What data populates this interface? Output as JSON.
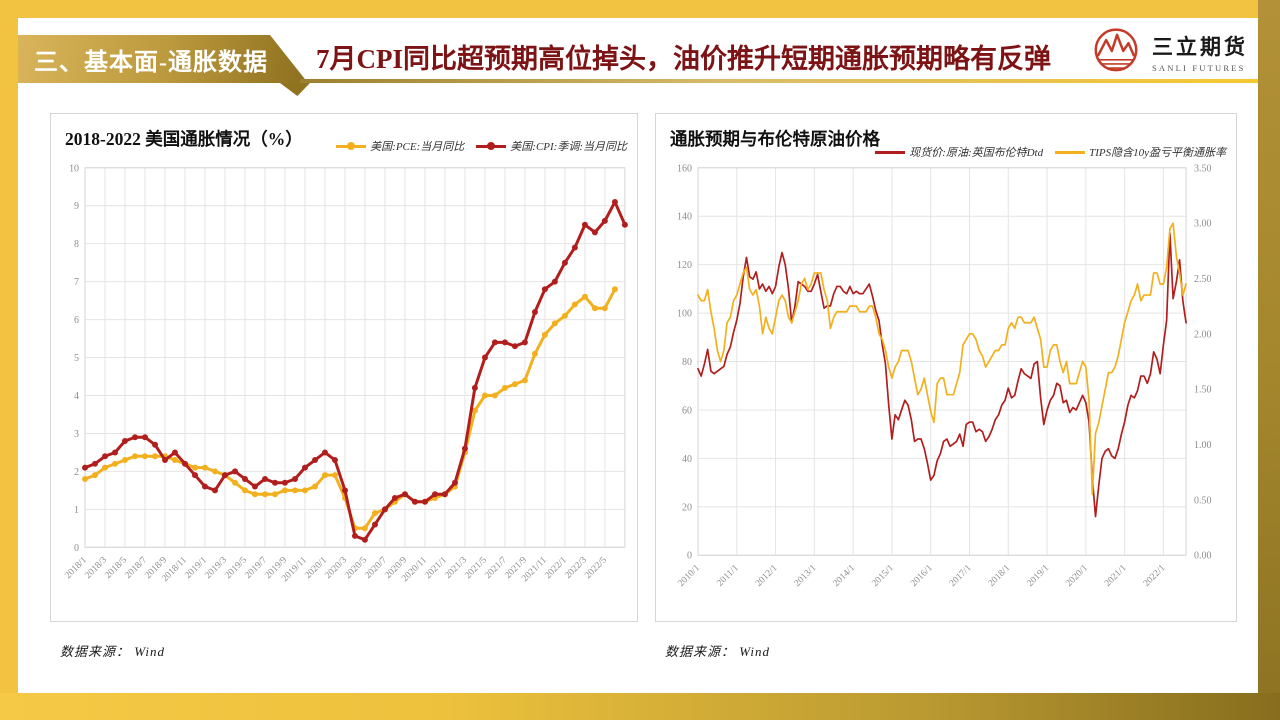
{
  "page": {
    "section_label": "三、基本面-通胀数据",
    "title": "7月CPI同比超预期高位掉头，油价推升短期通胀预期略有反弹",
    "logo_cn": "三立期货",
    "logo_en": "SANLI FUTURES"
  },
  "colors": {
    "gold_bright": "#F2C340",
    "gold_dark": "#8C7222",
    "title_red": "#7D1315",
    "line_red": "#B11E1E",
    "line_yellow": "#F2B01E",
    "grid": "#E4E4E4",
    "axis_text": "#8C8C8C",
    "panel_border": "#D6D6D6"
  },
  "chart_data": [
    {
      "type": "line",
      "title": "2018-2022 美国通胀情况（%）",
      "source": "数据来源： Wind",
      "legend_position": "top-right",
      "grid": true,
      "x_count": 55,
      "x_tick_step": 2,
      "x_tick_labels": [
        "2018/1",
        "2018/3",
        "2018/5",
        "2018/7",
        "2018/9",
        "2018/11",
        "2019/1",
        "2019/3",
        "2019/5",
        "2019/7",
        "2019/9",
        "2019/11",
        "2020/1",
        "2020/3",
        "2020/5",
        "2020/7",
        "2020/9",
        "2020/11",
        "2021/1",
        "2021/3",
        "2021/5",
        "2021/7",
        "2021/9",
        "2021/11",
        "2022/1",
        "2022/3",
        "2022/5"
      ],
      "ylim_left": [
        0,
        10
      ],
      "y_ticks_left": [
        "0",
        "1",
        "2",
        "3",
        "4",
        "5",
        "6",
        "7",
        "8",
        "9",
        "10"
      ],
      "series": [
        {
          "name": "美国:PCE:当月同比",
          "color": "#F2B01E",
          "axis": "left",
          "markers": true,
          "line_width": 3,
          "values": [
            1.8,
            1.9,
            2.1,
            2.2,
            2.3,
            2.4,
            2.4,
            2.4,
            2.4,
            2.3,
            2.2,
            2.1,
            2.1,
            2.0,
            1.9,
            1.7,
            1.5,
            1.4,
            1.4,
            1.4,
            1.5,
            1.5,
            1.5,
            1.6,
            1.9,
            1.9,
            1.3,
            0.5,
            0.5,
            0.9,
            1.0,
            1.2,
            1.4,
            1.2,
            1.2,
            1.3,
            1.4,
            1.6,
            2.5,
            3.6,
            4.0,
            4.0,
            4.2,
            4.3,
            4.4,
            5.1,
            5.6,
            5.9,
            6.1,
            6.4,
            6.6,
            6.3,
            6.3,
            6.8
          ]
        },
        {
          "name": "美国:CPI:季调:当月同比",
          "color": "#B11E1E",
          "axis": "left",
          "markers": true,
          "line_width": 3,
          "values": [
            2.1,
            2.2,
            2.4,
            2.5,
            2.8,
            2.9,
            2.9,
            2.7,
            2.3,
            2.5,
            2.2,
            1.9,
            1.6,
            1.5,
            1.9,
            2.0,
            1.8,
            1.6,
            1.8,
            1.7,
            1.7,
            1.8,
            2.1,
            2.3,
            2.5,
            2.3,
            1.5,
            0.3,
            0.2,
            0.6,
            1.0,
            1.3,
            1.4,
            1.2,
            1.2,
            1.4,
            1.4,
            1.7,
            2.6,
            4.2,
            5.0,
            5.4,
            5.4,
            5.3,
            5.4,
            6.2,
            6.8,
            7.0,
            7.5,
            7.9,
            8.5,
            8.3,
            8.6,
            9.1,
            8.5
          ]
        }
      ]
    },
    {
      "type": "line",
      "title": "通胀预期与布伦特原油价格",
      "source": "数据来源： Wind",
      "legend_position": "top-right",
      "grid": true,
      "x_count": 152,
      "x_tick_step": 12,
      "x_tick_labels": [
        "2010/1",
        "2011/1",
        "2012/1",
        "2013/1",
        "2014/1",
        "2015/1",
        "2016/1",
        "2017/1",
        "2018/1",
        "2019/1",
        "2020/1",
        "2021/1",
        "2022/1"
      ],
      "ylim_left": [
        0,
        160
      ],
      "y_ticks_left": [
        "0",
        "20",
        "40",
        "60",
        "80",
        "100",
        "120",
        "140",
        "160"
      ],
      "ylim_right": [
        0,
        3.5
      ],
      "y_ticks_right": [
        "0.00",
        "0.50",
        "1.00",
        "1.50",
        "2.00",
        "2.50",
        "3.00",
        "3.50"
      ],
      "series": [
        {
          "name": "现货价:原油:英国布伦特Dtd",
          "color": "#B11E1E",
          "axis": "left",
          "markers": false,
          "line_width": 1.7,
          "values": [
            77,
            74,
            79,
            85,
            76,
            75,
            76,
            77,
            78,
            83,
            86,
            92,
            97,
            104,
            115,
            123,
            115,
            114,
            117,
            110,
            112,
            109,
            111,
            108,
            111,
            119,
            125,
            120,
            110,
            96,
            103,
            113,
            112,
            111,
            109,
            109,
            112,
            116,
            109,
            102,
            103,
            103,
            108,
            111,
            111,
            109,
            108,
            111,
            108,
            109,
            108,
            108,
            110,
            112,
            107,
            101,
            97,
            87,
            79,
            62,
            48,
            58,
            56,
            60,
            64,
            62,
            56,
            47,
            48,
            48,
            44,
            38,
            31,
            33,
            39,
            42,
            47,
            48,
            45,
            46,
            47,
            50,
            45,
            54,
            55,
            55,
            51,
            52,
            51,
            47,
            49,
            52,
            56,
            58,
            62,
            64,
            69,
            65,
            66,
            72,
            77,
            75,
            74,
            73,
            79,
            80,
            65,
            54,
            60,
            64,
            66,
            71,
            70,
            63,
            64,
            59,
            61,
            60,
            63,
            66,
            63,
            55,
            32,
            16,
            29,
            40,
            43,
            44,
            41,
            40,
            44,
            50,
            55,
            62,
            66,
            65,
            68,
            74,
            74,
            71,
            75,
            84,
            81,
            75,
            87,
            97,
            133,
            106,
            113,
            122,
            105,
            96
          ]
        },
        {
          "name": "TIPS隐含10y盈亏平衡通胀率",
          "color": "#F2B01E",
          "axis": "right",
          "markers": false,
          "line_width": 1.7,
          "values": [
            2.35,
            2.3,
            2.3,
            2.4,
            2.2,
            2.05,
            1.85,
            1.75,
            1.85,
            2.1,
            2.15,
            2.3,
            2.35,
            2.45,
            2.55,
            2.6,
            2.4,
            2.35,
            2.4,
            2.25,
            2.0,
            2.15,
            2.05,
            2.0,
            2.15,
            2.3,
            2.35,
            2.3,
            2.15,
            2.1,
            2.2,
            2.3,
            2.45,
            2.5,
            2.4,
            2.45,
            2.55,
            2.55,
            2.55,
            2.4,
            2.3,
            2.05,
            2.15,
            2.2,
            2.2,
            2.2,
            2.2,
            2.25,
            2.25,
            2.25,
            2.2,
            2.2,
            2.2,
            2.25,
            2.25,
            2.15,
            2.0,
            1.95,
            1.85,
            1.7,
            1.6,
            1.7,
            1.75,
            1.85,
            1.85,
            1.85,
            1.75,
            1.6,
            1.45,
            1.5,
            1.6,
            1.45,
            1.3,
            1.2,
            1.55,
            1.6,
            1.6,
            1.45,
            1.45,
            1.45,
            1.55,
            1.65,
            1.9,
            1.95,
            2.0,
            2.0,
            1.95,
            1.85,
            1.8,
            1.7,
            1.75,
            1.8,
            1.85,
            1.85,
            1.9,
            1.9,
            2.05,
            2.1,
            2.05,
            2.15,
            2.15,
            2.1,
            2.1,
            2.1,
            2.15,
            2.05,
            1.95,
            1.7,
            1.7,
            1.85,
            1.9,
            1.9,
            1.75,
            1.65,
            1.75,
            1.55,
            1.55,
            1.55,
            1.65,
            1.75,
            1.7,
            1.4,
            0.55,
            1.1,
            1.2,
            1.35,
            1.5,
            1.65,
            1.65,
            1.7,
            1.8,
            1.95,
            2.1,
            2.2,
            2.3,
            2.35,
            2.45,
            2.3,
            2.35,
            2.35,
            2.35,
            2.55,
            2.55,
            2.45,
            2.45,
            2.6,
            2.95,
            3.0,
            2.7,
            2.55,
            2.35,
            2.45
          ]
        }
      ]
    }
  ]
}
